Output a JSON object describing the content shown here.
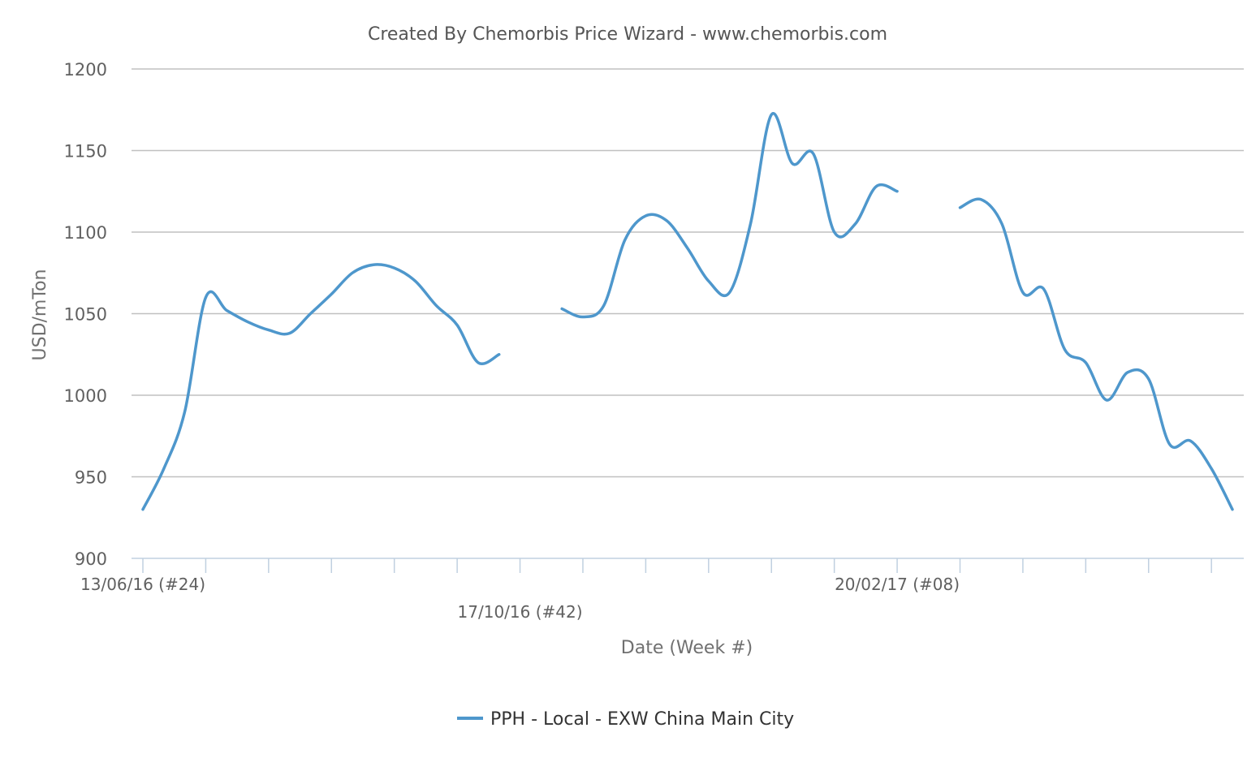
{
  "chart_data": {
    "type": "line",
    "title": "Created By Chemorbis Price Wizard - www.chemorbis.com",
    "xlabel": "Date (Week #)",
    "ylabel": "USD/mTon",
    "ylim": [
      900,
      1200
    ],
    "yticks": [
      900,
      950,
      1000,
      1050,
      1100,
      1150,
      1200
    ],
    "grid": true,
    "legend_position": "bottom-center",
    "series_color": "#4e97cc",
    "grid_color": "#c0c0c0",
    "axis_color": "#c0d0e0",
    "text_color": "#606060",
    "x_labels": [
      {
        "index": 0,
        "label": "13/06/16 (#24)"
      },
      {
        "index": 18,
        "label": "17/10/16 (#42)"
      },
      {
        "index": 36,
        "label": "20/02/17 (#08)"
      }
    ],
    "series": [
      {
        "name": "PPH - Local - EXW China Main City",
        "values": [
          930,
          955,
          990,
          1060,
          1052,
          1045,
          1040,
          1038,
          1050,
          1062,
          1075,
          1080,
          1078,
          1070,
          1055,
          1043,
          1020,
          1025,
          null,
          null,
          1053,
          1048,
          1055,
          1095,
          1110,
          1107,
          1090,
          1070,
          1063,
          1105,
          1172,
          1142,
          1148,
          1100,
          1105,
          1128,
          1125,
          null,
          null,
          1115,
          1120,
          1105,
          1063,
          1065,
          1028,
          1020,
          997,
          1014,
          1010,
          970,
          972,
          955,
          930
        ]
      }
    ]
  }
}
